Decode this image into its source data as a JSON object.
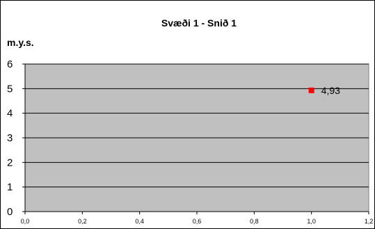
{
  "chart_data": {
    "type": "scatter",
    "title": "Svæði 1 - Snið 1",
    "ylabel": "m.y.s.",
    "xlabel": "",
    "xlim": [
      0,
      1.2
    ],
    "ylim": [
      0,
      6
    ],
    "xticks": [
      "0,0",
      "0,2",
      "0,4",
      "0,6",
      "0,8",
      "1,0",
      "1,2"
    ],
    "xtick_values": [
      0,
      0.2,
      0.4,
      0.6,
      0.8,
      1.0,
      1.2
    ],
    "yticks": [
      "0",
      "1",
      "2",
      "3",
      "4",
      "5",
      "6"
    ],
    "ytick_values": [
      0,
      1,
      2,
      3,
      4,
      5,
      6
    ],
    "grid": "horizontal",
    "legend": "none",
    "plot_background": "#c0c0c0",
    "series": [
      {
        "color": "#ff0000",
        "marker": "square",
        "points": [
          {
            "x": 1.0,
            "y": 4.93,
            "label": "4,93"
          }
        ]
      }
    ]
  }
}
